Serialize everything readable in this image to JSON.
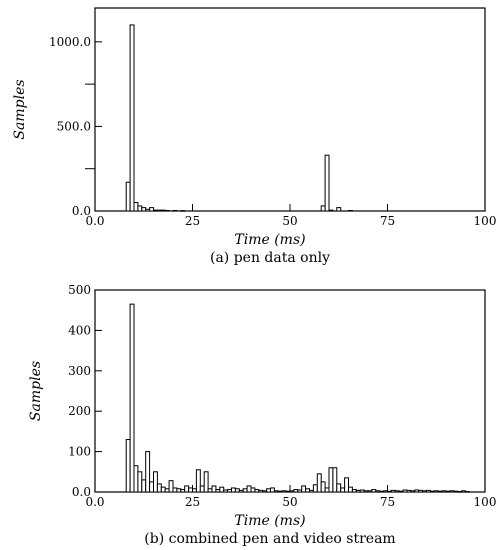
{
  "chart_data": [
    {
      "type": "bar",
      "caption": "(a) pen data only",
      "xlabel": "Time (ms)",
      "ylabel": "Samples",
      "xlim": [
        0,
        100
      ],
      "ylim": [
        0,
        1200
      ],
      "xticks": [
        0,
        25,
        50,
        75,
        100
      ],
      "xtick_labels": [
        "0.0",
        "25",
        "50",
        "75",
        "100"
      ],
      "yticks": [
        0,
        500,
        1000
      ],
      "ytick_labels": [
        "0.0",
        "500.0",
        "1000.0"
      ],
      "yminor_ticks": [
        250,
        750
      ],
      "bin_width": 1,
      "x": [
        8,
        9,
        10,
        11,
        12,
        13,
        14,
        15,
        16,
        17,
        18,
        20,
        22,
        58,
        59,
        60,
        62,
        65
      ],
      "values": [
        170,
        1100,
        50,
        30,
        20,
        10,
        20,
        5,
        5,
        5,
        3,
        3,
        2,
        30,
        330,
        5,
        20,
        3
      ]
    },
    {
      "type": "bar",
      "caption": "(b) combined pen and video stream",
      "xlabel": "Time (ms)",
      "ylabel": "Samples",
      "xlim": [
        0,
        100
      ],
      "ylim": [
        0,
        500
      ],
      "xticks": [
        0,
        25,
        50,
        75,
        100
      ],
      "xtick_labels": [
        "0.0",
        "25",
        "50",
        "75",
        "100"
      ],
      "yticks": [
        0,
        100,
        200,
        300,
        400,
        500
      ],
      "ytick_labels": [
        "0.0",
        "100",
        "200",
        "300",
        "400",
        "500"
      ],
      "bin_width": 1,
      "x": [
        8,
        9,
        10,
        11,
        12,
        13,
        14,
        15,
        16,
        17,
        18,
        19,
        20,
        21,
        22,
        23,
        24,
        25,
        26,
        27,
        28,
        29,
        30,
        31,
        32,
        33,
        34,
        35,
        36,
        37,
        38,
        39,
        40,
        41,
        42,
        43,
        44,
        45,
        46,
        47,
        48,
        49,
        50,
        51,
        52,
        53,
        54,
        55,
        56,
        57,
        58,
        59,
        60,
        61,
        62,
        63,
        64,
        65,
        66,
        67,
        68,
        69,
        70,
        71,
        72,
        73,
        74,
        75,
        76,
        77,
        78,
        79,
        80,
        81,
        82,
        83,
        84,
        85,
        86,
        87,
        88,
        89,
        90,
        91,
        92,
        93,
        94,
        95
      ],
      "values": [
        130,
        465,
        65,
        50,
        30,
        100,
        25,
        50,
        20,
        12,
        8,
        28,
        10,
        8,
        6,
        15,
        10,
        8,
        55,
        15,
        50,
        8,
        15,
        6,
        12,
        5,
        6,
        10,
        8,
        4,
        8,
        15,
        10,
        6,
        4,
        3,
        8,
        10,
        3,
        2,
        3,
        2,
        3,
        6,
        5,
        15,
        8,
        4,
        18,
        45,
        25,
        10,
        60,
        60,
        20,
        10,
        35,
        12,
        6,
        4,
        5,
        3,
        3,
        6,
        3,
        2,
        3,
        2,
        4,
        3,
        2,
        5,
        4,
        3,
        5,
        4,
        3,
        4,
        2,
        3,
        2,
        3,
        2,
        3,
        2,
        1,
        3,
        1
      ]
    }
  ]
}
